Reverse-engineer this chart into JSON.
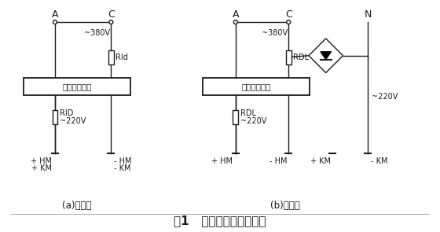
{
  "title": "图1   改进前后整流电路图",
  "subtitle_a": "(a)改进前",
  "subtitle_b": "(b)改进后",
  "bg_color": "#ffffff",
  "line_color": "#1a1a1a",
  "box_label": "直流操作电源",
  "label_A": "A",
  "label_C": "C",
  "label_N": "N",
  "label_380": "~380V",
  "label_220": "~220V",
  "label_RId": "RId",
  "label_RID": "RID",
  "label_RDL": "RDL",
  "label_pHM": "+ HM",
  "label_mHM": "- HM",
  "label_pKM": "+ KM",
  "label_mKM": "- KM",
  "label_pHM2": "+ HM",
  "label_mHM2": "- HM",
  "label_pKM2": "+ KM",
  "label_mKM2": "- KM"
}
